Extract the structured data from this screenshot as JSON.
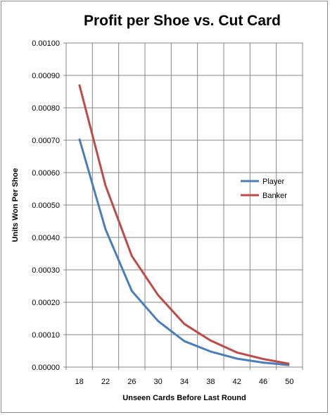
{
  "chart_data": {
    "type": "line",
    "title": "Profit per Shoe vs. Cut Card",
    "xlabel": "Unseen Cards Before Last Round",
    "ylabel": "Units Won Per Shoe",
    "x": [
      18,
      22,
      26,
      30,
      34,
      38,
      42,
      46,
      50
    ],
    "x_ticks": [
      "18",
      "22",
      "26",
      "30",
      "34",
      "38",
      "42",
      "46",
      "50"
    ],
    "ylim": [
      0,
      0.001
    ],
    "y_ticks": [
      "0.00000",
      "0.00010",
      "0.00020",
      "0.00030",
      "0.00040",
      "0.00050",
      "0.00060",
      "0.00070",
      "0.00080",
      "0.00090",
      "0.00100"
    ],
    "grid": true,
    "legend_position": "right",
    "series": [
      {
        "name": "Player",
        "color": "#4a7ebb",
        "values": [
          0.000705,
          0.000425,
          0.000235,
          0.000142,
          8e-05,
          4.8e-05,
          2.6e-05,
          1.4e-05,
          6e-06
        ]
      },
      {
        "name": "Banker",
        "color": "#be4b48",
        "values": [
          0.000872,
          0.00056,
          0.000343,
          0.000222,
          0.000133,
          8.2e-05,
          4.5e-05,
          2.5e-05,
          1e-05
        ]
      }
    ]
  }
}
